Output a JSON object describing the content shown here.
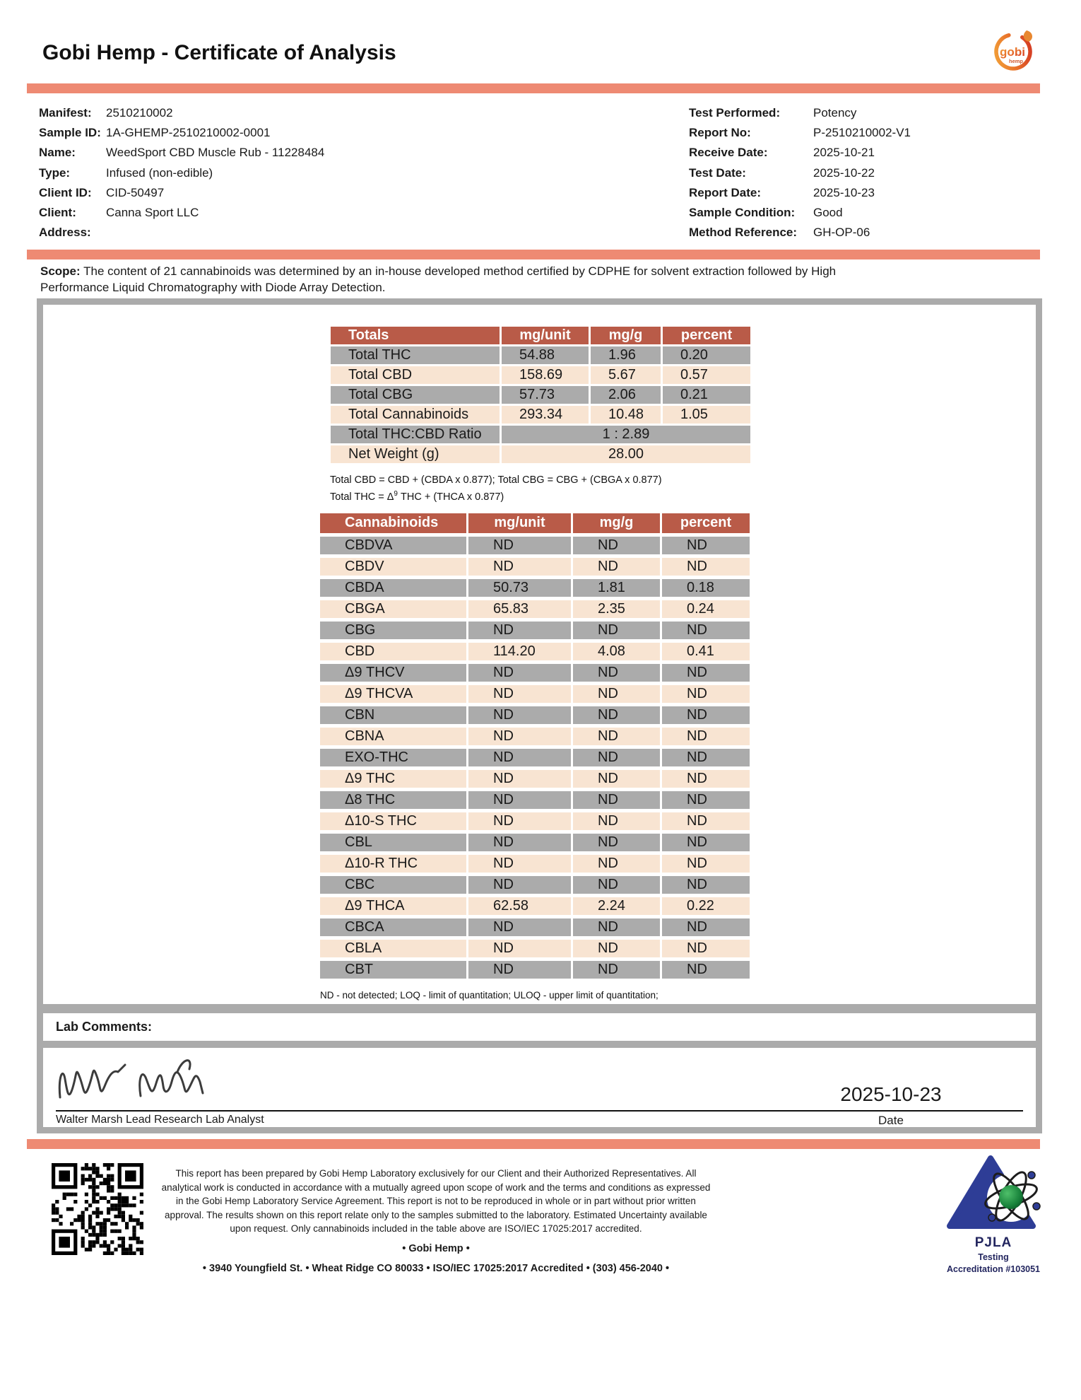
{
  "header": {
    "title": "Gobi Hemp - Certificate of Analysis",
    "logo_text": "gobi",
    "logo_subtext": "hemp"
  },
  "info_left": [
    {
      "label": "Manifest:",
      "value": "2510210002"
    },
    {
      "label": "Sample ID:",
      "value": "1A-GHEMP-2510210002-0001"
    },
    {
      "label": "Name:",
      "value": "WeedSport CBD Muscle Rub - 11228484"
    },
    {
      "label": "Type:",
      "value": "Infused (non-edible)"
    },
    {
      "label": "Client ID:",
      "value": "CID-50497"
    },
    {
      "label": "Client:",
      "value": "Canna Sport LLC"
    },
    {
      "label": "Address:",
      "value": ""
    }
  ],
  "info_right": [
    {
      "label": "Test Performed:",
      "value": "Potency"
    },
    {
      "label": "Report No:",
      "value": "P-2510210002-V1"
    },
    {
      "label": "Receive Date:",
      "value": "2025-10-21"
    },
    {
      "label": "Test Date:",
      "value": "2025-10-22"
    },
    {
      "label": "Report Date:",
      "value": "2025-10-23"
    },
    {
      "label": "Sample Condition:",
      "value": "Good"
    },
    {
      "label": "Method Reference:",
      "value": "GH-OP-06"
    }
  ],
  "scope": {
    "label": "Scope:",
    "text": " The content of 21 cannabinoids was determined by an in-house developed method certified by CDPHE for solvent extraction followed by High Performance Liquid Chromatography with Diode Array Detection."
  },
  "totals_table": {
    "headers": [
      "Totals",
      "mg/unit",
      "mg/g",
      "percent"
    ],
    "rows": [
      {
        "name": "Total THC",
        "mg_unit": "54.88",
        "mg_g": "1.96",
        "percent": "0.20"
      },
      {
        "name": "Total CBD",
        "mg_unit": "158.69",
        "mg_g": "5.67",
        "percent": "0.57"
      },
      {
        "name": "Total CBG",
        "mg_unit": "57.73",
        "mg_g": "2.06",
        "percent": "0.21"
      },
      {
        "name": "Total Cannabinoids",
        "mg_unit": "293.34",
        "mg_g": "10.48",
        "percent": "1.05"
      }
    ],
    "merged_rows": [
      {
        "name": "Total THC:CBD Ratio",
        "value": "1 : 2.89"
      },
      {
        "name": "Net Weight (g)",
        "value": "28.00"
      }
    ],
    "footnote_line1": "Total CBD = CBD + (CBDA x 0.877); Total CBG = CBG + (CBGA x 0.877)",
    "footnote_line2_pre": "Total THC = Δ",
    "footnote_line2_sup": "9",
    "footnote_line2_post": " THC + (THCA x 0.877)"
  },
  "cannabinoids_table": {
    "headers": [
      "Cannabinoids",
      "mg/unit",
      "mg/g",
      "percent"
    ],
    "rows": [
      {
        "name": "CBDVA",
        "mg_unit": "ND",
        "mg_g": "ND",
        "percent": "ND"
      },
      {
        "name": "CBDV",
        "mg_unit": "ND",
        "mg_g": "ND",
        "percent": "ND"
      },
      {
        "name": "CBDA",
        "mg_unit": "50.73",
        "mg_g": "1.81",
        "percent": "0.18"
      },
      {
        "name": "CBGA",
        "mg_unit": "65.83",
        "mg_g": "2.35",
        "percent": "0.24"
      },
      {
        "name": "CBG",
        "mg_unit": "ND",
        "mg_g": "ND",
        "percent": "ND"
      },
      {
        "name": "CBD",
        "mg_unit": "114.20",
        "mg_g": "4.08",
        "percent": "0.41"
      },
      {
        "name": "Δ9 THCV",
        "mg_unit": "ND",
        "mg_g": "ND",
        "percent": "ND"
      },
      {
        "name": "Δ9 THCVA",
        "mg_unit": "ND",
        "mg_g": "ND",
        "percent": "ND"
      },
      {
        "name": "CBN",
        "mg_unit": "ND",
        "mg_g": "ND",
        "percent": "ND"
      },
      {
        "name": "CBNA",
        "mg_unit": "ND",
        "mg_g": "ND",
        "percent": "ND"
      },
      {
        "name": "EXO-THC",
        "mg_unit": "ND",
        "mg_g": "ND",
        "percent": "ND"
      },
      {
        "name": "Δ9 THC",
        "mg_unit": "ND",
        "mg_g": "ND",
        "percent": "ND"
      },
      {
        "name": "Δ8 THC",
        "mg_unit": "ND",
        "mg_g": "ND",
        "percent": "ND"
      },
      {
        "name": "Δ10-S THC",
        "mg_unit": "ND",
        "mg_g": "ND",
        "percent": "ND"
      },
      {
        "name": "CBL",
        "mg_unit": "ND",
        "mg_g": "ND",
        "percent": "ND"
      },
      {
        "name": "Δ10-R THC",
        "mg_unit": "ND",
        "mg_g": "ND",
        "percent": "ND"
      },
      {
        "name": "CBC",
        "mg_unit": "ND",
        "mg_g": "ND",
        "percent": "ND"
      },
      {
        "name": "Δ9 THCA",
        "mg_unit": "62.58",
        "mg_g": "2.24",
        "percent": "0.22"
      },
      {
        "name": "CBCA",
        "mg_unit": "ND",
        "mg_g": "ND",
        "percent": "ND"
      },
      {
        "name": "CBLA",
        "mg_unit": "ND",
        "mg_g": "ND",
        "percent": "ND"
      },
      {
        "name": "CBT",
        "mg_unit": "ND",
        "mg_g": "ND",
        "percent": "ND"
      }
    ],
    "footnote": "ND - not detected; LOQ - limit of quantitation; ULOQ - upper limit of quantitation;"
  },
  "lab_comments": {
    "label": "Lab Comments:"
  },
  "signature": {
    "printed": "Walter Marsh Lead Research Lab Analyst",
    "date": "2025-10-23",
    "date_label": "Date"
  },
  "footer": {
    "disclaimer": "This report has been prepared by Gobi Hemp Laboratory exclusively for our Client and their Authorized Representatives. All analytical work is conducted in accordance with a mutually agreed upon scope of work and the terms and conditions as expressed in the Gobi Hemp Laboratory Service Agreement. This report is not to be reproduced in whole or in part without prior written approval. The results shown on this report relate only to the samples submitted to the laboratory. Estimated Uncertainty available upon request. Only cannabinoids included in the table above are ISO/IEC 17025:2017 accredited.",
    "company_line": "• Gobi Hemp •",
    "address_line": "• 3940 Youngfield St. • Wheat Ridge CO 80033 • ISO/IEC 17025:2017 Accredited • (303) 456-2040 •",
    "pjla": {
      "name": "PJLA",
      "line2": "Testing",
      "line3": "Accreditation #103051"
    }
  },
  "icons": [
    "gobi-hemp-logo",
    "qr-code",
    "pjla-accreditation-logo",
    "signature"
  ],
  "colors": {
    "coral": "#ee8a73",
    "table_header_red": "#b95b48",
    "row_gray": "#ababab",
    "row_peach": "#f8e4d2"
  }
}
